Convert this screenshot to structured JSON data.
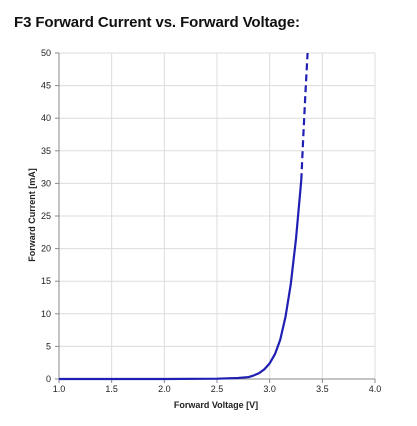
{
  "title": "F3 Forward Current vs. Forward Voltage:",
  "chart_data": {
    "type": "line",
    "xlabel": "Forward Voltage [V]",
    "ylabel": "Forward Current [mA]",
    "xlim": [
      1.0,
      4.0
    ],
    "ylim": [
      0,
      50
    ],
    "xticks": [
      "1.0",
      "1.5",
      "2.0",
      "2.5",
      "3.0",
      "3.5",
      "4.0"
    ],
    "yticks": [
      "0",
      "5",
      "10",
      "15",
      "20",
      "25",
      "30",
      "35",
      "40",
      "45",
      "50"
    ],
    "grid": true,
    "legend": "none",
    "series": [
      {
        "style": "solid",
        "color": "#1f1fb4",
        "x": [
          1.0,
          2.0,
          2.5,
          2.7,
          2.8,
          2.85,
          2.9,
          2.95,
          3.0,
          3.05,
          3.1,
          3.15,
          3.2,
          3.25,
          3.3
        ],
        "y": [
          0,
          0,
          0.05,
          0.15,
          0.3,
          0.55,
          0.9,
          1.5,
          2.4,
          3.8,
          6.0,
          9.5,
          14.5,
          21.5,
          30.5
        ]
      },
      {
        "style": "dashed",
        "color": "#1f1fb4",
        "x": [
          3.3,
          3.32,
          3.34,
          3.36
        ],
        "y": [
          30.5,
          37.5,
          44.0,
          50.0
        ]
      }
    ]
  }
}
